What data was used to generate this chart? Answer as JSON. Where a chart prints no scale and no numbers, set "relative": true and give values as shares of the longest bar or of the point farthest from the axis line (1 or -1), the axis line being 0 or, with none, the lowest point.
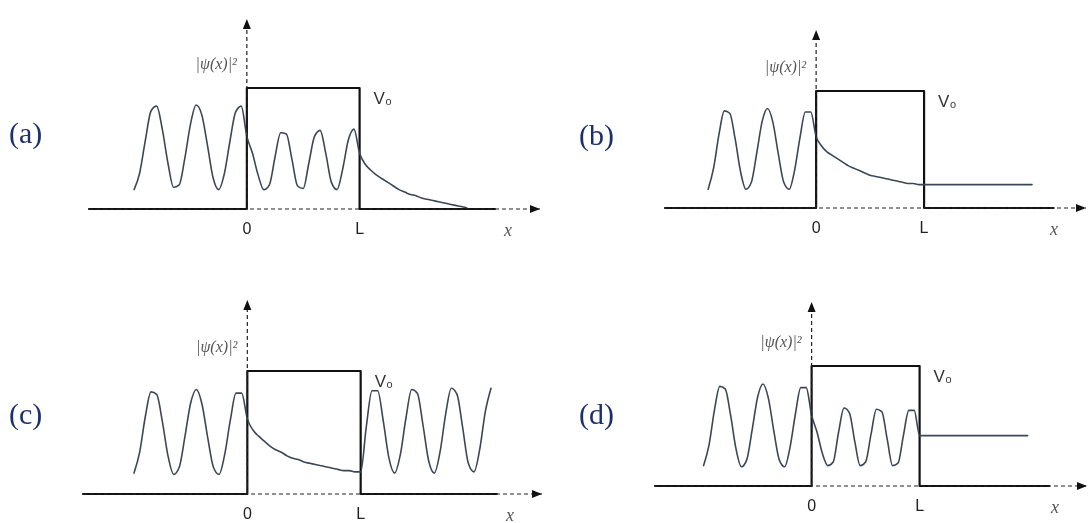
{
  "chart_data": [
    {
      "type": "line",
      "title": "(a)",
      "xlabel": "x",
      "ylabel": "|ψ(x)|²",
      "relative": true,
      "categories": [
        null,
        null,
        null,
        null,
        null,
        null,
        null,
        null,
        null,
        null,
        null,
        null,
        null,
        null,
        null,
        null,
        null,
        null,
        null,
        null,
        null,
        null,
        null,
        null,
        null,
        null,
        null,
        null,
        "0",
        null,
        null,
        null,
        null,
        null,
        null,
        null,
        null,
        null,
        null,
        null,
        null,
        null,
        null,
        null,
        null,
        null,
        null,
        null,
        "L",
        null,
        null,
        null,
        null,
        null,
        null,
        null,
        null,
        null,
        null,
        null,
        null,
        null,
        null,
        null,
        null,
        null,
        null,
        null,
        null,
        null,
        null,
        null,
        null,
        null,
        null,
        null,
        null,
        null,
        null,
        null,
        null
      ],
      "series": [
        {
          "type": "step",
          "name": "V₀",
          "color": "#111111",
          "values": [
            0,
            0,
            0,
            0,
            0,
            0,
            0,
            0,
            0,
            0,
            0,
            0,
            0,
            0,
            0,
            0,
            0,
            0,
            0,
            0,
            0,
            0,
            0,
            0,
            0,
            0,
            0,
            0,
            1,
            1,
            1,
            1,
            1,
            1,
            1,
            1,
            1,
            1,
            1,
            1,
            1,
            1,
            1,
            1,
            1,
            1,
            1,
            1,
            0,
            0,
            0,
            0,
            0,
            0,
            0,
            0,
            0,
            0,
            0,
            0,
            0,
            0,
            0,
            0,
            0,
            0,
            0,
            0,
            0,
            0,
            0,
            0,
            0,
            null,
            null,
            null,
            null,
            null,
            null,
            null,
            null
          ]
        },
        {
          "color": "#3b4758",
          "values": [
            null,
            null,
            null,
            null,
            null,
            null,
            null,
            null,
            0.16,
            0.3,
            0.57,
            0.81,
            0.85,
            0.66,
            0.38,
            0.18,
            0.2,
            0.42,
            0.7,
            0.86,
            0.78,
            0.53,
            0.26,
            0.16,
            0.29,
            0.56,
            0.8,
            0.85,
            0.6,
            0.46,
            0.28,
            0.16,
            0.2,
            0.43,
            0.63,
            0.62,
            0.41,
            0.19,
            0.17,
            0.38,
            0.6,
            0.65,
            0.46,
            0.22,
            0.16,
            0.33,
            0.57,
            0.66,
            0.46,
            0.37,
            0.32,
            0.28,
            0.25,
            0.22,
            0.19,
            0.16,
            0.14,
            0.12,
            0.11,
            0.09,
            0.08,
            0.07,
            0.06,
            0.05,
            0.04,
            0.03,
            0.02,
            0.01,
            null,
            null,
            null,
            null,
            null,
            null,
            null,
            null,
            null,
            null,
            null,
            null,
            null
          ]
        }
      ]
    },
    {
      "type": "line",
      "title": "(b)",
      "xlabel": "x",
      "ylabel": "|ψ(x)|²",
      "relative": true,
      "categories": [
        null,
        null,
        null,
        null,
        null,
        null,
        null,
        null,
        null,
        null,
        null,
        null,
        null,
        null,
        null,
        null,
        null,
        null,
        null,
        null,
        null,
        null,
        null,
        null,
        null,
        null,
        null,
        null,
        "0",
        null,
        null,
        null,
        null,
        null,
        null,
        null,
        null,
        null,
        null,
        null,
        null,
        null,
        null,
        null,
        null,
        null,
        null,
        null,
        "L",
        null,
        null,
        null,
        null,
        null,
        null,
        null,
        null,
        null,
        null,
        null,
        null,
        null,
        null,
        null,
        null,
        null,
        null,
        null,
        null,
        null,
        null,
        null,
        null,
        null,
        null,
        null,
        null,
        null,
        null
      ],
      "series": [
        {
          "type": "step",
          "name": "V₀",
          "color": "#111111",
          "values": [
            0,
            0,
            0,
            0,
            0,
            0,
            0,
            0,
            0,
            0,
            0,
            0,
            0,
            0,
            0,
            0,
            0,
            0,
            0,
            0,
            0,
            0,
            0,
            0,
            0,
            0,
            0,
            0,
            1,
            1,
            1,
            1,
            1,
            1,
            1,
            1,
            1,
            1,
            1,
            1,
            1,
            1,
            1,
            1,
            1,
            1,
            1,
            1,
            0,
            0,
            0,
            0,
            0,
            0,
            0,
            0,
            0,
            0,
            0,
            0,
            0,
            0,
            0,
            0,
            0,
            0,
            0,
            0,
            0,
            0,
            0,
            0,
            0,
            null,
            null,
            null,
            null,
            null,
            null
          ]
        },
        {
          "color": "#3b4758",
          "values": [
            null,
            null,
            null,
            null,
            null,
            null,
            null,
            null,
            0.16,
            0.34,
            0.63,
            0.83,
            0.81,
            0.59,
            0.31,
            0.16,
            0.22,
            0.47,
            0.74,
            0.85,
            0.73,
            0.46,
            0.22,
            0.16,
            0.32,
            0.6,
            0.82,
            0.82,
            0.61,
            0.53,
            0.48,
            0.45,
            0.42,
            0.39,
            0.36,
            0.34,
            0.32,
            0.3,
            0.28,
            0.27,
            0.26,
            0.25,
            0.24,
            0.23,
            0.22,
            0.21,
            0.21,
            0.2,
            0.2,
            0.2,
            0.2,
            0.2,
            0.2,
            0.2,
            0.2,
            0.2,
            0.2,
            0.2,
            0.2,
            0.2,
            0.2,
            0.2,
            0.2,
            0.2,
            0.2,
            0.2,
            0.2,
            0.2,
            0.2,
            null,
            null,
            null,
            null,
            null,
            null,
            null,
            null,
            null,
            null
          ]
        }
      ]
    },
    {
      "type": "line",
      "title": "(c)",
      "xlabel": "x",
      "ylabel": "|ψ(x)|²",
      "relative": true,
      "categories": [
        null,
        null,
        null,
        null,
        null,
        null,
        null,
        null,
        null,
        null,
        null,
        null,
        null,
        null,
        null,
        null,
        null,
        null,
        null,
        null,
        null,
        null,
        null,
        null,
        null,
        null,
        null,
        null,
        null,
        "0",
        null,
        null,
        null,
        null,
        null,
        null,
        null,
        null,
        null,
        null,
        null,
        null,
        null,
        null,
        null,
        null,
        null,
        null,
        null,
        "L",
        null,
        null,
        null,
        null,
        null,
        null,
        null,
        null,
        null,
        null,
        null,
        null,
        null,
        null,
        null,
        null,
        null,
        null,
        null,
        null,
        null,
        null,
        null,
        null,
        null,
        null,
        null,
        null,
        null,
        null,
        null,
        null
      ],
      "series": [
        {
          "type": "step",
          "name": "V₀",
          "color": "#111111",
          "values": [
            0,
            0,
            0,
            0,
            0,
            0,
            0,
            0,
            0,
            0,
            0,
            0,
            0,
            0,
            0,
            0,
            0,
            0,
            0,
            0,
            0,
            0,
            0,
            0,
            0,
            0,
            0,
            0,
            0,
            1,
            1,
            1,
            1,
            1,
            1,
            1,
            1,
            1,
            1,
            1,
            1,
            1,
            1,
            1,
            1,
            1,
            1,
            1,
            1,
            0,
            0,
            0,
            0,
            0,
            0,
            0,
            0,
            0,
            0,
            0,
            0,
            0,
            0,
            0,
            0,
            0,
            0,
            0,
            0,
            0,
            0,
            0,
            0,
            0,
            null,
            null,
            null,
            null,
            null,
            null,
            null,
            null
          ]
        },
        {
          "color": "#3b4758",
          "values": [
            null,
            null,
            null,
            null,
            null,
            null,
            null,
            null,
            null,
            0.17,
            0.34,
            0.63,
            0.83,
            0.81,
            0.59,
            0.31,
            0.16,
            0.22,
            0.47,
            0.74,
            0.85,
            0.73,
            0.46,
            0.22,
            0.16,
            0.32,
            0.6,
            0.82,
            0.82,
            0.61,
            0.52,
            0.47,
            0.43,
            0.39,
            0.36,
            0.34,
            0.31,
            0.29,
            0.28,
            0.26,
            0.25,
            0.24,
            0.23,
            0.22,
            0.21,
            0.2,
            0.19,
            0.19,
            0.18,
            0.18,
            0.55,
            0.84,
            0.84,
            0.59,
            0.29,
            0.17,
            0.32,
            0.62,
            0.85,
            0.82,
            0.56,
            0.27,
            0.17,
            0.34,
            0.65,
            0.86,
            0.81,
            0.54,
            0.25,
            0.18,
            0.36,
            0.67,
            0.86,
            null,
            null,
            null,
            null,
            null,
            null,
            null,
            null,
            null
          ]
        }
      ]
    },
    {
      "type": "line",
      "title": "(d)",
      "xlabel": "x",
      "ylabel": "|ψ(x)|²",
      "relative": true,
      "categories": [
        null,
        null,
        null,
        null,
        null,
        null,
        null,
        null,
        null,
        null,
        null,
        null,
        null,
        null,
        null,
        null,
        null,
        null,
        null,
        null,
        null,
        null,
        null,
        null,
        null,
        null,
        null,
        null,
        null,
        "0",
        null,
        null,
        null,
        null,
        null,
        null,
        null,
        null,
        null,
        null,
        null,
        null,
        null,
        null,
        null,
        null,
        null,
        null,
        null,
        "L",
        null,
        null,
        null,
        null,
        null,
        null,
        null,
        null,
        null,
        null,
        null,
        null,
        null,
        null,
        null,
        null,
        null,
        null,
        null,
        null,
        null,
        null,
        null,
        null,
        null,
        null,
        null,
        null,
        null,
        null,
        null
      ],
      "series": [
        {
          "type": "step",
          "name": "V₀",
          "color": "#111111",
          "values": [
            0,
            0,
            0,
            0,
            0,
            0,
            0,
            0,
            0,
            0,
            0,
            0,
            0,
            0,
            0,
            0,
            0,
            0,
            0,
            0,
            0,
            0,
            0,
            0,
            0,
            0,
            0,
            0,
            0,
            1,
            1,
            1,
            1,
            1,
            1,
            1,
            1,
            1,
            1,
            1,
            1,
            1,
            1,
            1,
            1,
            1,
            1,
            1,
            1,
            0,
            0,
            0,
            0,
            0,
            0,
            0,
            0,
            0,
            0,
            0,
            0,
            0,
            0,
            0,
            0,
            0,
            0,
            0,
            0,
            0,
            0,
            0,
            0,
            0,
            null,
            null,
            null,
            null,
            null,
            null,
            null
          ]
        },
        {
          "color": "#3b4758",
          "values": [
            null,
            null,
            null,
            null,
            null,
            null,
            null,
            null,
            null,
            0.17,
            0.34,
            0.63,
            0.83,
            0.81,
            0.59,
            0.31,
            0.16,
            0.22,
            0.47,
            0.74,
            0.85,
            0.73,
            0.46,
            0.22,
            0.16,
            0.32,
            0.6,
            0.82,
            0.82,
            0.59,
            0.45,
            0.27,
            0.17,
            0.2,
            0.45,
            0.65,
            0.61,
            0.37,
            0.17,
            0.2,
            0.43,
            0.64,
            0.62,
            0.39,
            0.17,
            0.19,
            0.42,
            0.63,
            0.63,
            0.42,
            0.42,
            0.42,
            0.42,
            0.42,
            0.42,
            0.42,
            0.42,
            0.42,
            0.42,
            0.42,
            0.42,
            0.42,
            0.42,
            0.42,
            0.42,
            0.42,
            0.42,
            0.42,
            0.42,
            0.42,
            null,
            null,
            null,
            null,
            null,
            null,
            null,
            null,
            null,
            null,
            null
          ]
        }
      ]
    }
  ]
}
